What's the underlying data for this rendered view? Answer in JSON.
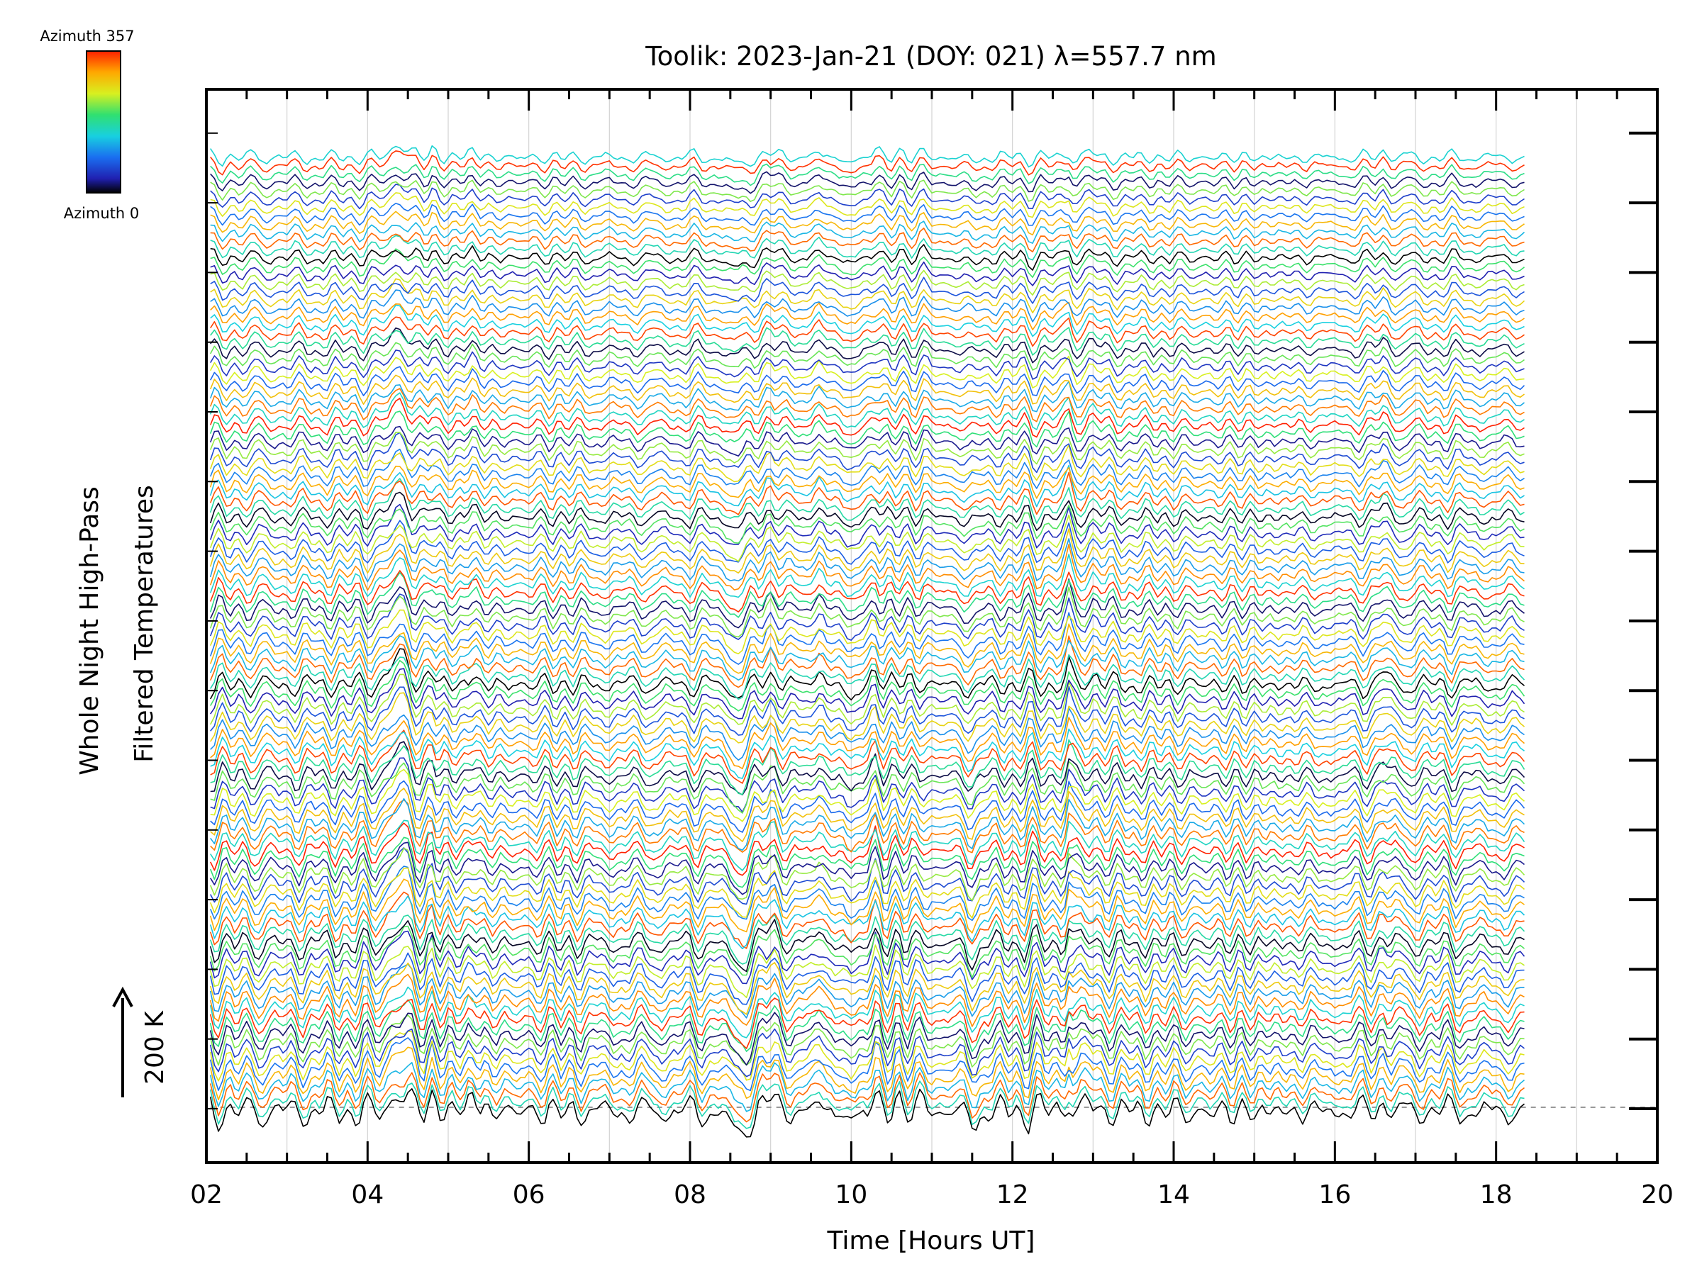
{
  "chart_data": {
    "type": "line",
    "title": "Toolik: 2023-Jan-21 (DOY: 021) λ=557.7 nm",
    "xlabel": "Time [Hours UT]",
    "ylabel_line1": "Whole Night High-Pass",
    "ylabel_line2": "Filtered Temperatures",
    "scale_label": "200 K",
    "scale_kelvin": 200,
    "xlim": [
      2,
      20
    ],
    "x_ticks": [
      "02",
      "04",
      "06",
      "08",
      "10",
      "12",
      "14",
      "16",
      "18",
      "20"
    ],
    "x_tick_values": [
      2,
      4,
      6,
      8,
      10,
      12,
      14,
      16,
      18,
      20
    ],
    "data_time_range": [
      2.05,
      18.35
    ],
    "colorbar": {
      "top_label": "Azimuth 357",
      "bottom_label": "Azimuth 0",
      "min": 0,
      "max": 357,
      "colormap": "rainbow"
    },
    "grid": "vertical, every 1 hour",
    "series_count": 115,
    "baseline_dashed": true,
    "feature_times_hours": [
      4.4,
      4.8,
      5.3,
      8.6,
      9.0,
      9.6,
      10.0,
      10.3,
      10.6,
      10.9,
      11.5,
      12.7,
      13.0,
      16.6
    ],
    "colors": {
      "axis": "#000000",
      "grid": "#d3d3d3",
      "background": "#ffffff",
      "baseline": "#999999"
    }
  }
}
